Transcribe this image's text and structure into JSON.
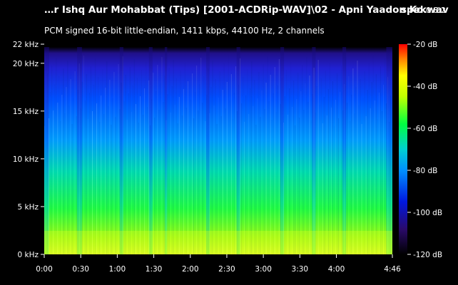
{
  "header": {
    "title": "…r Ishq Aur Mohabbat (Tips) [2001-ACDRip-WAV]\\02 - Apni Yaadon Ko.wav",
    "app_name": "spek",
    "app_version": "0.8.2",
    "format_info": "PCM signed 16-bit little-endian, 1411 kbps, 44100 Hz, 2 channels"
  },
  "colors": {
    "background": "#000000",
    "text": "#ffffff",
    "colormap": [
      "#000000",
      "#0000c0",
      "#0060ff",
      "#00d0ff",
      "#00ff60",
      "#c0ff00",
      "#ffff00",
      "#ff8000",
      "#ff0000"
    ]
  },
  "chart_data": {
    "type": "heatmap",
    "title": "…r Ishq Aur Mohabbat (Tips) [2001-ACDRip-WAV]\\02 - Apni Yaadon Ko.wav",
    "x_axis": {
      "ticks": [
        "0:00",
        "0:30",
        "1:00",
        "1:30",
        "2:00",
        "2:30",
        "3:00",
        "3:30",
        "4:00",
        "4:46"
      ],
      "tick_seconds": [
        0,
        30,
        60,
        90,
        120,
        150,
        180,
        210,
        240,
        286
      ],
      "range_seconds": [
        0,
        286
      ]
    },
    "y_axis": {
      "ticks": [
        "0 kHz",
        "5 kHz",
        "10 kHz",
        "15 kHz",
        "20 kHz",
        "22 kHz"
      ],
      "tick_khz": [
        0,
        5,
        10,
        15,
        20,
        22
      ],
      "range_khz": [
        0,
        22
      ]
    },
    "colorbar": {
      "ticks": [
        "-20 dB",
        "-40 dB",
        "-60 dB",
        "-80 dB",
        "-100 dB",
        "-120 dB"
      ],
      "tick_db": [
        -20,
        -40,
        -60,
        -80,
        -100,
        -120
      ],
      "range_db": [
        -120,
        -20
      ]
    }
  }
}
